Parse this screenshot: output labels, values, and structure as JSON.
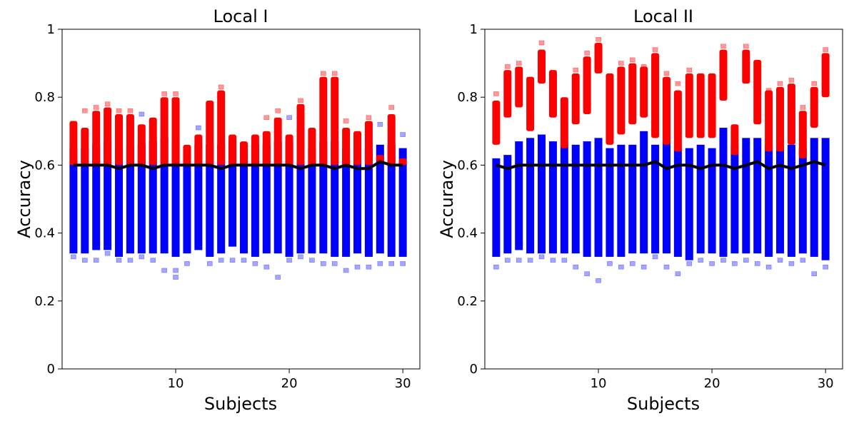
{
  "chart_data": [
    {
      "type": "scatter",
      "title": "Local I",
      "xlabel": "Subjects",
      "ylabel": "Accuracy",
      "xlim": [
        0,
        31.5
      ],
      "ylim": [
        0,
        1
      ],
      "xticks": [
        10,
        20,
        30
      ],
      "xtick_labels": [
        "10",
        "20",
        "30"
      ],
      "yticks": [
        0,
        0.2,
        0.4,
        0.6,
        0.8,
        1
      ],
      "ytick_labels": [
        "0",
        "0.2",
        "0.4",
        "0.6",
        "0.8",
        "1"
      ],
      "grid": false,
      "colors": {
        "above": "#ff0000",
        "below": "#0000ff",
        "line": "#000000"
      },
      "subjects": [
        1,
        2,
        3,
        4,
        5,
        6,
        7,
        8,
        9,
        10,
        11,
        12,
        13,
        14,
        15,
        16,
        17,
        18,
        19,
        20,
        21,
        22,
        23,
        24,
        25,
        26,
        27,
        28,
        29,
        30
      ],
      "dense_ranges": {
        "above_min": [
          0.6,
          0.6,
          0.6,
          0.6,
          0.6,
          0.6,
          0.6,
          0.6,
          0.6,
          0.6,
          0.6,
          0.6,
          0.6,
          0.6,
          0.6,
          0.6,
          0.6,
          0.6,
          0.6,
          0.6,
          0.6,
          0.6,
          0.6,
          0.6,
          0.6,
          0.6,
          0.6,
          0.61,
          0.6,
          0.6
        ],
        "above_max": [
          0.73,
          0.71,
          0.76,
          0.77,
          0.75,
          0.75,
          0.72,
          0.74,
          0.8,
          0.8,
          0.66,
          0.69,
          0.79,
          0.82,
          0.69,
          0.67,
          0.69,
          0.7,
          0.74,
          0.69,
          0.78,
          0.71,
          0.86,
          0.86,
          0.71,
          0.7,
          0.73,
          0.63,
          0.75,
          0.62
        ],
        "below_min": [
          0.34,
          0.34,
          0.35,
          0.35,
          0.33,
          0.34,
          0.34,
          0.34,
          0.34,
          0.33,
          0.34,
          0.35,
          0.33,
          0.34,
          0.36,
          0.34,
          0.33,
          0.34,
          0.34,
          0.33,
          0.34,
          0.34,
          0.34,
          0.33,
          0.33,
          0.34,
          0.33,
          0.34,
          0.33,
          0.33
        ],
        "below_max": [
          0.65,
          0.65,
          0.66,
          0.67,
          0.65,
          0.66,
          0.66,
          0.67,
          0.68,
          0.68,
          0.63,
          0.66,
          0.66,
          0.66,
          0.67,
          0.65,
          0.66,
          0.66,
          0.67,
          0.67,
          0.66,
          0.65,
          0.67,
          0.67,
          0.65,
          0.65,
          0.65,
          0.66,
          0.66,
          0.65
        ]
      },
      "outliers": {
        "above": [
          [
            2,
            0.76
          ],
          [
            3,
            0.77
          ],
          [
            4,
            0.78
          ],
          [
            5,
            0.76
          ],
          [
            6,
            0.76
          ],
          [
            9,
            0.81
          ],
          [
            10,
            0.81
          ],
          [
            14,
            0.83
          ],
          [
            18,
            0.74
          ],
          [
            19,
            0.76
          ],
          [
            21,
            0.79
          ],
          [
            23,
            0.87
          ],
          [
            24,
            0.87
          ],
          [
            25,
            0.73
          ],
          [
            27,
            0.74
          ],
          [
            29,
            0.77
          ]
        ],
        "below": [
          [
            1,
            0.33
          ],
          [
            2,
            0.32
          ],
          [
            3,
            0.32
          ],
          [
            4,
            0.34
          ],
          [
            5,
            0.32
          ],
          [
            6,
            0.32
          ],
          [
            7,
            0.33
          ],
          [
            7,
            0.75
          ],
          [
            8,
            0.32
          ],
          [
            9,
            0.29
          ],
          [
            10,
            0.27
          ],
          [
            10,
            0.29
          ],
          [
            11,
            0.31
          ],
          [
            12,
            0.71
          ],
          [
            13,
            0.31
          ],
          [
            14,
            0.32
          ],
          [
            15,
            0.32
          ],
          [
            16,
            0.32
          ],
          [
            17,
            0.31
          ],
          [
            18,
            0.3
          ],
          [
            19,
            0.27
          ],
          [
            20,
            0.32
          ],
          [
            20,
            0.74
          ],
          [
            21,
            0.33
          ],
          [
            22,
            0.32
          ],
          [
            23,
            0.31
          ],
          [
            24,
            0.31
          ],
          [
            25,
            0.29
          ],
          [
            26,
            0.3
          ],
          [
            27,
            0.3
          ],
          [
            28,
            0.31
          ],
          [
            28,
            0.72
          ],
          [
            29,
            0.31
          ],
          [
            30,
            0.31
          ],
          [
            30,
            0.69
          ]
        ]
      },
      "line": {
        "name": "",
        "y": [
          0.6,
          0.6,
          0.6,
          0.6,
          0.59,
          0.6,
          0.6,
          0.59,
          0.6,
          0.6,
          0.6,
          0.6,
          0.6,
          0.59,
          0.6,
          0.6,
          0.6,
          0.6,
          0.6,
          0.6,
          0.59,
          0.6,
          0.6,
          0.59,
          0.6,
          0.59,
          0.59,
          0.61,
          0.6,
          0.6
        ]
      }
    },
    {
      "type": "scatter",
      "title": "Local II",
      "xlabel": "Subjects",
      "ylabel": "Accuracy",
      "xlim": [
        0,
        31.5
      ],
      "ylim": [
        0,
        1
      ],
      "xticks": [
        10,
        20,
        30
      ],
      "xtick_labels": [
        "10",
        "20",
        "30"
      ],
      "yticks": [
        0,
        0.2,
        0.4,
        0.6,
        0.8,
        1
      ],
      "ytick_labels": [
        "0",
        "0.2",
        "0.4",
        "0.6",
        "0.8",
        "1"
      ],
      "grid": false,
      "colors": {
        "above": "#ff0000",
        "below": "#0000ff",
        "line": "#000000"
      },
      "subjects": [
        1,
        2,
        3,
        4,
        5,
        6,
        7,
        8,
        9,
        10,
        11,
        12,
        13,
        14,
        15,
        16,
        17,
        18,
        19,
        20,
        21,
        22,
        23,
        24,
        25,
        26,
        27,
        28,
        29,
        30
      ],
      "dense_ranges": {
        "above_min": [
          0.66,
          0.74,
          0.77,
          0.7,
          0.84,
          0.74,
          0.65,
          0.72,
          0.75,
          0.87,
          0.66,
          0.69,
          0.72,
          0.74,
          0.68,
          0.66,
          0.64,
          0.68,
          0.68,
          0.68,
          0.79,
          0.63,
          0.84,
          0.72,
          0.64,
          0.64,
          0.66,
          0.62,
          0.71,
          0.8
        ],
        "above_max": [
          0.79,
          0.88,
          0.89,
          0.86,
          0.94,
          0.88,
          0.8,
          0.87,
          0.92,
          0.96,
          0.87,
          0.89,
          0.9,
          0.89,
          0.93,
          0.86,
          0.82,
          0.87,
          0.87,
          0.87,
          0.94,
          0.72,
          0.94,
          0.91,
          0.82,
          0.83,
          0.84,
          0.76,
          0.83,
          0.93
        ],
        "below_min": [
          0.33,
          0.34,
          0.35,
          0.34,
          0.34,
          0.34,
          0.34,
          0.34,
          0.33,
          0.33,
          0.33,
          0.33,
          0.34,
          0.34,
          0.34,
          0.34,
          0.33,
          0.32,
          0.34,
          0.34,
          0.33,
          0.34,
          0.34,
          0.34,
          0.33,
          0.34,
          0.33,
          0.34,
          0.33,
          0.32
        ],
        "below_max": [
          0.62,
          0.63,
          0.67,
          0.68,
          0.69,
          0.67,
          0.66,
          0.66,
          0.67,
          0.68,
          0.65,
          0.66,
          0.66,
          0.7,
          0.66,
          0.68,
          0.65,
          0.65,
          0.66,
          0.65,
          0.71,
          0.66,
          0.68,
          0.68,
          0.66,
          0.66,
          0.66,
          0.65,
          0.68,
          0.68
        ]
      },
      "outliers": {
        "above": [
          [
            1,
            0.81
          ],
          [
            2,
            0.89
          ],
          [
            3,
            0.9
          ],
          [
            5,
            0.96
          ],
          [
            6,
            0.87
          ],
          [
            8,
            0.88
          ],
          [
            9,
            0.93
          ],
          [
            10,
            0.97
          ],
          [
            12,
            0.9
          ],
          [
            13,
            0.91
          ],
          [
            14,
            0.89
          ],
          [
            15,
            0.94
          ],
          [
            16,
            0.87
          ],
          [
            17,
            0.84
          ],
          [
            18,
            0.88
          ],
          [
            21,
            0.95
          ],
          [
            23,
            0.95
          ],
          [
            25,
            0.82
          ],
          [
            26,
            0.84
          ],
          [
            27,
            0.85
          ],
          [
            28,
            0.77
          ],
          [
            29,
            0.84
          ],
          [
            30,
            0.94
          ]
        ],
        "below": [
          [
            1,
            0.3
          ],
          [
            2,
            0.32
          ],
          [
            3,
            0.32
          ],
          [
            4,
            0.32
          ],
          [
            5,
            0.33
          ],
          [
            6,
            0.32
          ],
          [
            7,
            0.32
          ],
          [
            8,
            0.3
          ],
          [
            9,
            0.28
          ],
          [
            10,
            0.26
          ],
          [
            11,
            0.31
          ],
          [
            12,
            0.3
          ],
          [
            13,
            0.31
          ],
          [
            14,
            0.3
          ],
          [
            15,
            0.33
          ],
          [
            16,
            0.3
          ],
          [
            17,
            0.28
          ],
          [
            18,
            0.31
          ],
          [
            19,
            0.32
          ],
          [
            20,
            0.31
          ],
          [
            21,
            0.32
          ],
          [
            22,
            0.31
          ],
          [
            23,
            0.32
          ],
          [
            24,
            0.31
          ],
          [
            25,
            0.3
          ],
          [
            26,
            0.32
          ],
          [
            27,
            0.31
          ],
          [
            28,
            0.32
          ],
          [
            29,
            0.28
          ],
          [
            30,
            0.3
          ]
        ]
      },
      "line": {
        "name": "",
        "y": [
          0.6,
          0.59,
          0.6,
          0.6,
          0.6,
          0.6,
          0.6,
          0.6,
          0.6,
          0.6,
          0.6,
          0.6,
          0.6,
          0.6,
          0.61,
          0.59,
          0.6,
          0.6,
          0.59,
          0.6,
          0.6,
          0.59,
          0.6,
          0.61,
          0.59,
          0.6,
          0.59,
          0.6,
          0.61,
          0.6
        ]
      }
    }
  ]
}
